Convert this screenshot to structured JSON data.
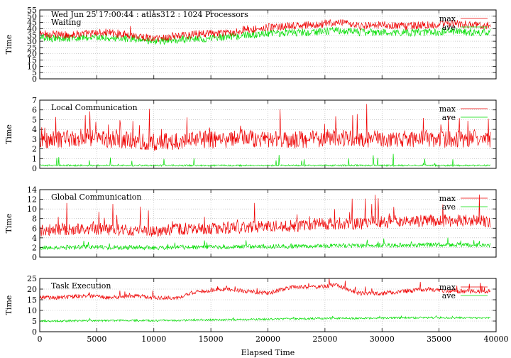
{
  "chart_data": {
    "type": "line",
    "x_range": [
      0,
      40000
    ],
    "x_ticks": [
      0,
      5000,
      10000,
      15000,
      20000,
      25000,
      30000,
      35000,
      40000
    ],
    "x_ticks_shown_on": "bottom",
    "xlabel": "Elapsed Time",
    "grid": true,
    "legend_position": "top-right",
    "colors": {
      "max": "#ee0000",
      "ave": "#00dd00"
    },
    "panels": [
      {
        "header": "Wed Jun 25 17:00:44 : atlas312 : 1024 Processors",
        "title": "Waiting",
        "ylabel": "Time",
        "ylim": [
          0,
          55
        ],
        "yticks": [
          0,
          5,
          10,
          15,
          20,
          25,
          30,
          35,
          40,
          45,
          50,
          55
        ],
        "series": [
          {
            "name": "max",
            "x": [
              0,
              2000,
              4000,
              6000,
              8000,
              10000,
              12000,
              14000,
              16000,
              18000,
              20000,
              22000,
              24000,
              26000,
              28000,
              30000,
              32000,
              34000,
              36000,
              38000,
              39500
            ],
            "values": [
              36,
              35,
              36,
              37,
              35,
              32,
              34,
              36,
              36,
              39,
              41,
              42,
              43,
              45,
              42,
              43,
              42,
              43,
              44,
              43,
              43
            ]
          },
          {
            "name": "ave",
            "x": [
              0,
              2000,
              4000,
              6000,
              8000,
              10000,
              12000,
              14000,
              16000,
              18000,
              20000,
              22000,
              24000,
              26000,
              28000,
              30000,
              32000,
              34000,
              36000,
              38000,
              39500
            ],
            "values": [
              33,
              32,
              33,
              33,
              32,
              30,
              31,
              32,
              33,
              35,
              36,
              37,
              37,
              39,
              37,
              37,
              37,
              37,
              38,
              37,
              37
            ]
          }
        ]
      },
      {
        "header": "",
        "title": "Local Communication",
        "ylabel": "Time",
        "ylim": [
          0,
          7
        ],
        "yticks": [
          0,
          1,
          2,
          3,
          4,
          5,
          6,
          7
        ],
        "series": [
          {
            "name": "max",
            "x": [
              0,
              2000,
              4000,
              6000,
              8000,
              10000,
              12000,
              14000,
              16000,
              18000,
              20000,
              22000,
              24000,
              26000,
              28000,
              30000,
              32000,
              34000,
              36000,
              38000,
              39500
            ],
            "values": [
              2.8,
              3.0,
              3.2,
              3.0,
              2.9,
              2.7,
              2.8,
              3.0,
              2.9,
              3.1,
              3.0,
              2.9,
              3.0,
              3.2,
              3.0,
              3.1,
              3.0,
              3.1,
              3.0,
              3.0,
              3.0
            ]
          },
          {
            "name": "ave",
            "x": [
              0,
              2000,
              4000,
              6000,
              8000,
              10000,
              12000,
              14000,
              16000,
              18000,
              20000,
              22000,
              24000,
              26000,
              28000,
              30000,
              32000,
              34000,
              36000,
              38000,
              39500
            ],
            "values": [
              0.3,
              0.3,
              0.3,
              0.3,
              0.3,
              0.3,
              0.3,
              0.3,
              0.3,
              0.3,
              0.3,
              0.3,
              0.3,
              0.3,
              0.3,
              0.3,
              0.3,
              0.3,
              0.3,
              0.3,
              0.3
            ]
          }
        ]
      },
      {
        "header": "",
        "title": "Global Communication",
        "ylabel": "Time",
        "ylim": [
          0,
          14
        ],
        "yticks": [
          0,
          2,
          4,
          6,
          8,
          10,
          12,
          14
        ],
        "series": [
          {
            "name": "max",
            "x": [
              0,
              2000,
              4000,
              6000,
              8000,
              10000,
              12000,
              14000,
              16000,
              18000,
              20000,
              22000,
              24000,
              26000,
              28000,
              30000,
              32000,
              34000,
              36000,
              38000,
              39500
            ],
            "values": [
              5.5,
              5.8,
              6.0,
              5.7,
              5.6,
              5.4,
              5.8,
              5.9,
              6.1,
              6.2,
              6.3,
              6.5,
              6.8,
              7.0,
              7.0,
              7.3,
              7.5,
              7.6,
              7.6,
              7.5,
              7.4
            ]
          },
          {
            "name": "ave",
            "x": [
              0,
              2000,
              4000,
              6000,
              8000,
              10000,
              12000,
              14000,
              16000,
              18000,
              20000,
              22000,
              24000,
              26000,
              28000,
              30000,
              32000,
              34000,
              36000,
              38000,
              39500
            ],
            "values": [
              2.0,
              2.0,
              2.1,
              2.0,
              2.0,
              1.9,
              2.0,
              2.1,
              2.1,
              2.2,
              2.2,
              2.2,
              2.3,
              2.4,
              2.4,
              2.5,
              2.5,
              2.6,
              2.6,
              2.5,
              2.5
            ]
          }
        ]
      },
      {
        "header": "",
        "title": "Task Execution",
        "ylabel": "Time",
        "ylim": [
          0,
          25
        ],
        "yticks": [
          0,
          5,
          10,
          15,
          20,
          25
        ],
        "series": [
          {
            "name": "max",
            "x": [
              0,
              2000,
              4000,
              6000,
              8000,
              10000,
              12000,
              14000,
              16000,
              18000,
              20000,
              22000,
              24000,
              26000,
              28000,
              30000,
              32000,
              34000,
              36000,
              38000,
              39500
            ],
            "values": [
              16,
              16,
              17,
              16,
              17,
              16,
              16,
              19,
              20,
              19,
              18,
              21,
              21,
              22,
              18,
              18,
              19,
              20,
              19,
              19,
              19
            ]
          },
          {
            "name": "ave",
            "x": [
              0,
              2000,
              4000,
              6000,
              8000,
              10000,
              12000,
              14000,
              16000,
              18000,
              20000,
              22000,
              24000,
              26000,
              28000,
              30000,
              32000,
              34000,
              36000,
              38000,
              39500
            ],
            "values": [
              5,
              5,
              5.2,
              5.2,
              5.3,
              5.2,
              5.3,
              5.5,
              5.6,
              5.7,
              5.9,
              6.0,
              6.2,
              6.3,
              6.3,
              6.4,
              6.5,
              6.6,
              6.6,
              6.5,
              6.5
            ]
          }
        ]
      }
    ]
  }
}
